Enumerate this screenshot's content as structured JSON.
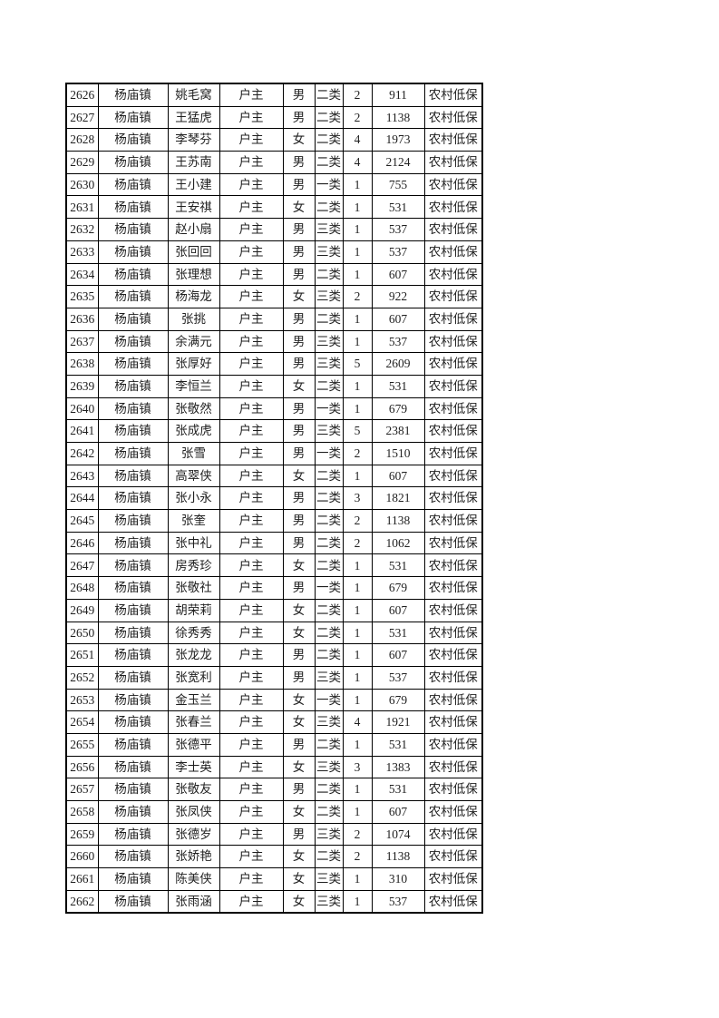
{
  "colors": {
    "page_background": "#ffffff",
    "table_border": "#000000",
    "text": "#1f1f1f"
  },
  "table": {
    "rows": [
      [
        "2626",
        "杨庙镇",
        "姚毛窝",
        "户主",
        "男",
        "二类",
        "2",
        "911",
        "农村低保"
      ],
      [
        "2627",
        "杨庙镇",
        "王猛虎",
        "户主",
        "男",
        "二类",
        "2",
        "1138",
        "农村低保"
      ],
      [
        "2628",
        "杨庙镇",
        "李琴芬",
        "户主",
        "女",
        "二类",
        "4",
        "1973",
        "农村低保"
      ],
      [
        "2629",
        "杨庙镇",
        "王苏南",
        "户主",
        "男",
        "二类",
        "4",
        "2124",
        "农村低保"
      ],
      [
        "2630",
        "杨庙镇",
        "王小建",
        "户主",
        "男",
        "一类",
        "1",
        "755",
        "农村低保"
      ],
      [
        "2631",
        "杨庙镇",
        "王安祺",
        "户主",
        "女",
        "二类",
        "1",
        "531",
        "农村低保"
      ],
      [
        "2632",
        "杨庙镇",
        "赵小扇",
        "户主",
        "男",
        "三类",
        "1",
        "537",
        "农村低保"
      ],
      [
        "2633",
        "杨庙镇",
        "张回回",
        "户主",
        "男",
        "三类",
        "1",
        "537",
        "农村低保"
      ],
      [
        "2634",
        "杨庙镇",
        "张理想",
        "户主",
        "男",
        "二类",
        "1",
        "607",
        "农村低保"
      ],
      [
        "2635",
        "杨庙镇",
        "杨海龙",
        "户主",
        "女",
        "三类",
        "2",
        "922",
        "农村低保"
      ],
      [
        "2636",
        "杨庙镇",
        "张挑",
        "户主",
        "男",
        "二类",
        "1",
        "607",
        "农村低保"
      ],
      [
        "2637",
        "杨庙镇",
        "余满元",
        "户主",
        "男",
        "三类",
        "1",
        "537",
        "农村低保"
      ],
      [
        "2638",
        "杨庙镇",
        "张厚好",
        "户主",
        "男",
        "三类",
        "5",
        "2609",
        "农村低保"
      ],
      [
        "2639",
        "杨庙镇",
        "李恒兰",
        "户主",
        "女",
        "二类",
        "1",
        "531",
        "农村低保"
      ],
      [
        "2640",
        "杨庙镇",
        "张敬然",
        "户主",
        "男",
        "一类",
        "1",
        "679",
        "农村低保"
      ],
      [
        "2641",
        "杨庙镇",
        "张成虎",
        "户主",
        "男",
        "三类",
        "5",
        "2381",
        "农村低保"
      ],
      [
        "2642",
        "杨庙镇",
        "张雪",
        "户主",
        "男",
        "一类",
        "2",
        "1510",
        "农村低保"
      ],
      [
        "2643",
        "杨庙镇",
        "高翠侠",
        "户主",
        "女",
        "二类",
        "1",
        "607",
        "农村低保"
      ],
      [
        "2644",
        "杨庙镇",
        "张小永",
        "户主",
        "男",
        "二类",
        "3",
        "1821",
        "农村低保"
      ],
      [
        "2645",
        "杨庙镇",
        "张奎",
        "户主",
        "男",
        "二类",
        "2",
        "1138",
        "农村低保"
      ],
      [
        "2646",
        "杨庙镇",
        "张中礼",
        "户主",
        "男",
        "二类",
        "2",
        "1062",
        "农村低保"
      ],
      [
        "2647",
        "杨庙镇",
        "房秀珍",
        "户主",
        "女",
        "二类",
        "1",
        "531",
        "农村低保"
      ],
      [
        "2648",
        "杨庙镇",
        "张敬社",
        "户主",
        "男",
        "一类",
        "1",
        "679",
        "农村低保"
      ],
      [
        "2649",
        "杨庙镇",
        "胡荣莉",
        "户主",
        "女",
        "二类",
        "1",
        "607",
        "农村低保"
      ],
      [
        "2650",
        "杨庙镇",
        "徐秀秀",
        "户主",
        "女",
        "二类",
        "1",
        "531",
        "农村低保"
      ],
      [
        "2651",
        "杨庙镇",
        "张龙龙",
        "户主",
        "男",
        "二类",
        "1",
        "607",
        "农村低保"
      ],
      [
        "2652",
        "杨庙镇",
        "张宽利",
        "户主",
        "男",
        "三类",
        "1",
        "537",
        "农村低保"
      ],
      [
        "2653",
        "杨庙镇",
        "金玉兰",
        "户主",
        "女",
        "一类",
        "1",
        "679",
        "农村低保"
      ],
      [
        "2654",
        "杨庙镇",
        "张春兰",
        "户主",
        "女",
        "三类",
        "4",
        "1921",
        "农村低保"
      ],
      [
        "2655",
        "杨庙镇",
        "张德平",
        "户主",
        "男",
        "二类",
        "1",
        "531",
        "农村低保"
      ],
      [
        "2656",
        "杨庙镇",
        "李士英",
        "户主",
        "女",
        "三类",
        "3",
        "1383",
        "农村低保"
      ],
      [
        "2657",
        "杨庙镇",
        "张敬友",
        "户主",
        "男",
        "二类",
        "1",
        "531",
        "农村低保"
      ],
      [
        "2658",
        "杨庙镇",
        "张凤侠",
        "户主",
        "女",
        "二类",
        "1",
        "607",
        "农村低保"
      ],
      [
        "2659",
        "杨庙镇",
        "张德岁",
        "户主",
        "男",
        "三类",
        "2",
        "1074",
        "农村低保"
      ],
      [
        "2660",
        "杨庙镇",
        "张娇艳",
        "户主",
        "女",
        "二类",
        "2",
        "1138",
        "农村低保"
      ],
      [
        "2661",
        "杨庙镇",
        "陈美侠",
        "户主",
        "女",
        "三类",
        "1",
        "310",
        "农村低保"
      ],
      [
        "2662",
        "杨庙镇",
        "张雨涵",
        "户主",
        "女",
        "三类",
        "1",
        "537",
        "农村低保"
      ]
    ]
  }
}
